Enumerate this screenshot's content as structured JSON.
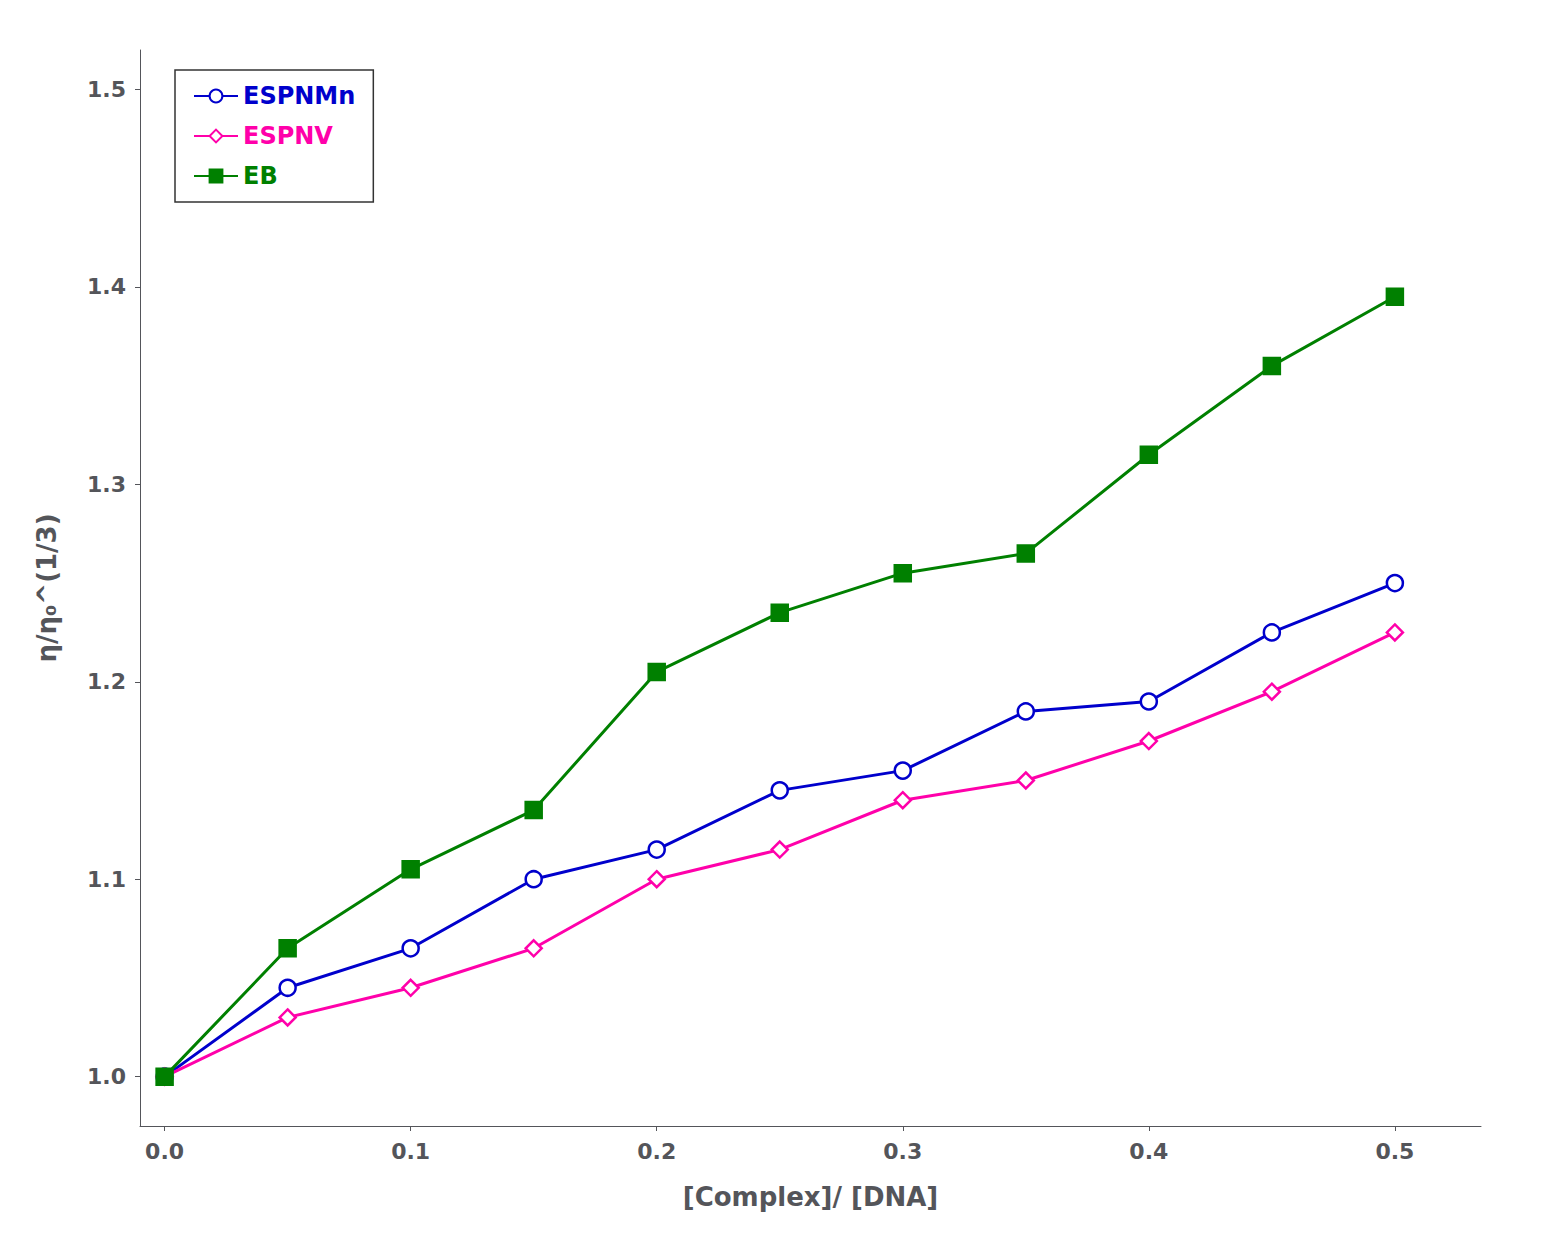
{
  "chart_data": {
    "type": "line",
    "xlabel": "[Complex]/ [DNA]",
    "ylabel": "η/η₀^(1/3)",
    "x": [
      0.0,
      0.05,
      0.1,
      0.15,
      0.2,
      0.25,
      0.3,
      0.35,
      0.4,
      0.45,
      0.5
    ],
    "series": [
      {
        "name": "ESPNMn",
        "color": "#0000cc",
        "marker": "open_circle",
        "values": [
          1.0,
          1.045,
          1.065,
          1.1,
          1.115,
          1.145,
          1.155,
          1.185,
          1.19,
          1.225,
          1.25
        ]
      },
      {
        "name": "ESPNV",
        "color": "#ff00aa",
        "marker": "open_diamond",
        "values": [
          1.0,
          1.03,
          1.045,
          1.065,
          1.1,
          1.115,
          1.14,
          1.15,
          1.17,
          1.195,
          1.225
        ]
      },
      {
        "name": "EB",
        "color": "#008000",
        "marker": "square",
        "values": [
          1.0,
          1.065,
          1.105,
          1.135,
          1.205,
          1.235,
          1.255,
          1.265,
          1.315,
          1.36,
          1.395
        ]
      }
    ],
    "xlim": [
      -0.01,
      0.535
    ],
    "ylim": [
      0.975,
      1.52
    ],
    "xticks": [
      {
        "value": 0.0,
        "label": "0.0"
      },
      0.1,
      0.2,
      0.3,
      0.4,
      0.5
    ],
    "yticks": [
      {
        "value": 1.0,
        "label": "1.0"
      },
      1.1,
      1.2,
      1.3,
      1.4,
      1.5
    ],
    "grid": false,
    "legend": "upper left"
  }
}
